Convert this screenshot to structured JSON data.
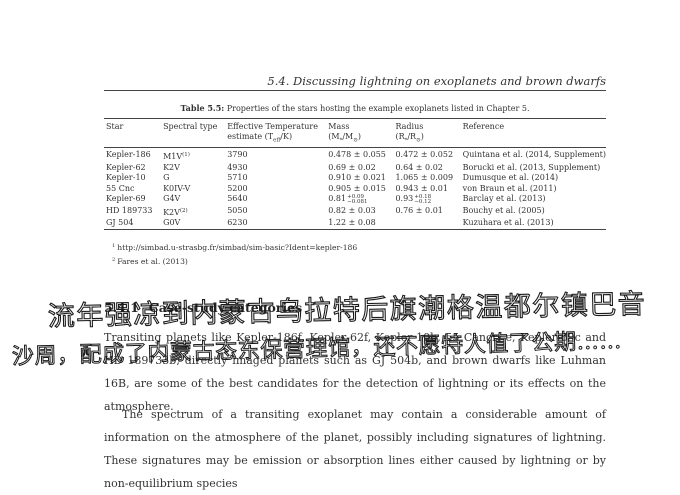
{
  "running_head": "5.4.  Discussing lightning on exoplanets and brown dwarfs",
  "table": {
    "caption_label": "Table 5.5:",
    "caption_text": "Properties of the stars hosting the example exoplanets listed in Chapter 5.",
    "headers": {
      "star": "Star",
      "spectral_type": "Spectral type",
      "temp_line1": "Effective Temperature",
      "temp_line2": "estimate (T",
      "temp_sub": "eff",
      "temp_unit": "/K)",
      "mass_line1": "Mass",
      "mass_line2": "(M",
      "mass_sub": "*",
      "mass_mid": "/M",
      "mass_sub2": "⊙",
      "mass_end": ")",
      "radius_line1": "Radius",
      "radius_line2": "(R",
      "radius_sub": "*",
      "radius_mid": "/R",
      "radius_sub2": "⊙",
      "radius_end": ")",
      "reference": "Reference"
    },
    "rows": [
      {
        "star": "Kepler-186",
        "spectral_type": "M1V",
        "spectral_note": "(1)",
        "temperature": "3790",
        "mass": "0.478 ± 0.055",
        "radius": "0.472 ± 0.052",
        "reference": "Quintana et al. (2014, Supplement)"
      },
      {
        "star": "Kepler-62",
        "spectral_type": "K2V",
        "spectral_note": "",
        "temperature": "4930",
        "mass": "0.69 ± 0.02",
        "radius": "0.64 ± 0.02",
        "reference": "Borucki et al. (2013, Supplement)"
      },
      {
        "star": "Kepler-10",
        "spectral_type": "G",
        "spectral_note": "",
        "temperature": "5710",
        "mass": "0.910 ± 0.021",
        "radius": "1.065 ± 0.009",
        "reference": "Dumusque et al. (2014)"
      },
      {
        "star": "55 Cnc",
        "spectral_type": "K0IV-V",
        "spectral_note": "",
        "temperature": "5200",
        "mass": "0.905 ± 0.015",
        "radius": "0.943 ± 0.01",
        "reference": "von Braun et al. (2011)"
      },
      {
        "star": "Kepler-69",
        "spectral_type": "G4V",
        "spectral_note": "",
        "temperature": "5640",
        "mass": "0.81+0.09−0.081",
        "radius": "0.93+0.18−0.12",
        "reference": "Barclay et al. (2013)"
      },
      {
        "star": "HD 189733",
        "spectral_type": "K2V",
        "spectral_note": "(2)",
        "temperature": "5050",
        "mass": "0.82 ± 0.03",
        "radius": "0.76 ± 0.01",
        "reference": "Bouchy et al. (2005)"
      },
      {
        "star": "GJ 504",
        "spectral_type": "G0V",
        "spectral_note": "",
        "temperature": "6230",
        "mass": "1.22 ± 0.08",
        "radius": "",
        "reference": "Kuzuhara et al. (2013)"
      }
    ],
    "footnotes": [
      {
        "mark": "1",
        "text": "http://simbad.u-strasbg.fr/simbad/sim-basic?Ident=kepler-186"
      },
      {
        "mark": "2",
        "text": "Fares et al. (2013)"
      }
    ]
  },
  "section": {
    "number": "5.4.1",
    "title": "Case-study categories"
  },
  "handwriting": {
    "line1": "流年强凉到内蒙古乌拉特后旗潮格温都尔镇巴音",
    "line2": "沙周，配成了内蒙古态东保营理馆，还不愿特人值了公期……"
  },
  "paragraphs": {
    "p1": "Transiting planets like Kepler-186f, Kepler-62f, Kepler-10b, 55 Cancri e, Kepler-69c and HD 189733b, directly imaged planets such as GJ 504b, and brown dwarfs like Luhman 16B, are some of the best candidates for the detection of lightning or its effects on the atmosphere.",
    "p2": "The spectrum of a transiting exoplanet may contain a considerable amount of information on the atmosphere of the planet, possibly including signatures of lightning.  These signatures may be emission or absorption lines either caused by lightning or by non-equilibrium species"
  }
}
